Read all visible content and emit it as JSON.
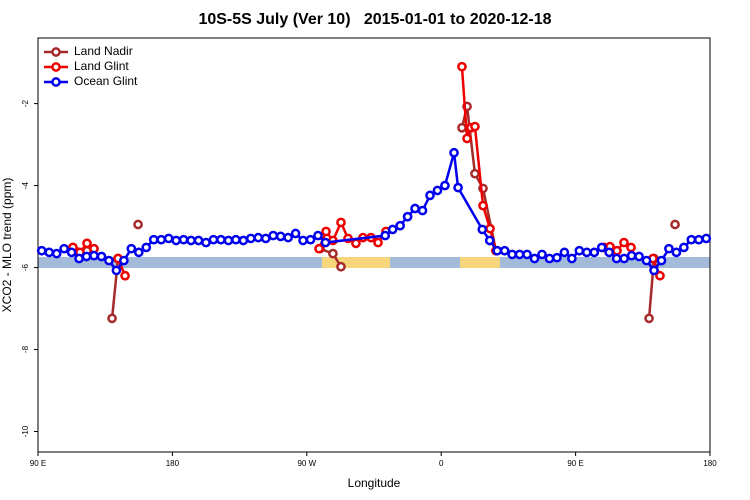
{
  "chart_data": {
    "type": "line",
    "title": "10S-5S July (Ver 10)   2015-01-01 to 2020-12-18",
    "x_label": "Longitude",
    "y_label": "XCO2 - MLO trend (ppm)",
    "xlim": [
      90,
      540
    ],
    "xticks": [
      {
        "value": 90,
        "label": "90 E"
      },
      180,
      {
        "value": 270,
        "label": "90 W"
      },
      {
        "value": 360,
        "label": "0"
      },
      {
        "value": 450,
        "label": "90 E"
      },
      {
        "value": 540,
        "label": "180"
      }
    ],
    "ylim": [
      -10.5,
      -0.4
    ],
    "yticks": [
      -10,
      -8,
      -6,
      -4,
      -2
    ],
    "legend": "top-left",
    "series": [
      {
        "name": "Land Nadir",
        "color": "#a52a2a",
        "x": [
          113.4,
          122.8,
          131.0,
          139.6,
          143.6,
          150.0,
          157.0,
          220.0,
          278.8,
          287.5,
          292.9,
          330.0,
          373.9,
          377.3,
          382.6,
          388.0,
          396.7,
          430.0,
          469.0,
          477.7,
          490.0,
          499.2,
          502.5,
          510.0,
          516.6
        ],
        "values": [
          -5.51,
          -5.59,
          null,
          -7.24,
          -5.78,
          null,
          -4.95,
          null,
          -5.54,
          -5.66,
          -5.98,
          null,
          -2.59,
          -2.07,
          -3.71,
          -4.07,
          -5.59,
          null,
          -5.51,
          -5.59,
          null,
          -7.24,
          -5.78,
          null,
          -4.95
        ]
      },
      {
        "name": "Land Glint",
        "color": "#ee0000",
        "x": [
          113.4,
          118.1,
          122.8,
          127.5,
          135.0,
          143.6,
          148.3,
          220.0,
          278.2,
          282.9,
          287.5,
          292.9,
          297.6,
          302.9,
          307.6,
          313.0,
          317.7,
          323.0,
          350.0,
          373.9,
          377.3,
          379.9,
          382.6,
          388.0,
          392.7,
          396.7,
          430.0,
          469.0,
          473.0,
          477.7,
          482.4,
          487.1,
          495.0,
          501.8,
          506.5
        ],
        "values": [
          -5.51,
          -5.63,
          -5.41,
          -5.54,
          null,
          -5.78,
          -6.2,
          null,
          -5.54,
          -5.12,
          -5.34,
          -4.9,
          -5.29,
          -5.41,
          -5.27,
          -5.27,
          -5.39,
          -5.12,
          null,
          -1.1,
          -2.85,
          -2.59,
          -2.56,
          -4.49,
          -5.05,
          -5.59,
          null,
          -5.51,
          -5.49,
          -5.59,
          -5.39,
          -5.51,
          null,
          -5.78,
          -6.2
        ]
      },
      {
        "name": "Ocean Glint",
        "color": "#0000ee",
        "x": [
          92.5,
          97.5,
          102.5,
          107.5,
          112.5,
          117.5,
          122.5,
          127.5,
          132.5,
          137.5,
          142.5,
          147.5,
          152.5,
          157.5,
          162.5,
          167.5,
          172.5,
          177.5,
          182.5,
          187.5,
          192.5,
          197.5,
          202.5,
          207.5,
          212.5,
          217.5,
          222.5,
          227.5,
          232.5,
          237.5,
          242.5,
          247.5,
          252.5,
          257.5,
          262.5,
          267.5,
          272.5,
          277.5,
          282.5,
          322.5,
          327.5,
          332.5,
          337.5,
          342.5,
          347.5,
          352.5,
          357.5,
          362.5,
          368.6,
          371.3,
          387.5,
          392.5,
          397.5,
          402.5,
          407.5,
          412.5,
          417.5,
          422.5,
          427.5,
          432.5,
          437.5,
          442.5,
          447.5,
          452.5,
          457.5,
          462.5,
          467.5,
          472.5,
          477.5,
          482.5,
          487.5,
          492.5,
          497.5,
          502.5,
          507.5,
          512.5,
          517.5,
          522.5,
          527.5,
          532.5,
          537.5
        ],
        "values": [
          -5.59,
          -5.63,
          -5.66,
          -5.54,
          -5.63,
          -5.78,
          -5.73,
          -5.71,
          -5.73,
          -5.83,
          -6.07,
          -5.83,
          -5.54,
          -5.63,
          -5.51,
          -5.32,
          -5.32,
          -5.29,
          -5.34,
          -5.32,
          -5.34,
          -5.34,
          -5.39,
          -5.32,
          -5.32,
          -5.34,
          -5.32,
          -5.34,
          -5.29,
          -5.27,
          -5.29,
          -5.22,
          -5.24,
          -5.27,
          -5.17,
          -5.34,
          -5.32,
          -5.22,
          -5.39,
          -5.22,
          -5.07,
          -4.98,
          -4.76,
          -4.56,
          -4.61,
          -4.24,
          -4.12,
          -4.0,
          -3.2,
          -4.05,
          -5.07,
          -5.34,
          -5.59,
          -5.59,
          -5.68,
          -5.68,
          -5.68,
          -5.78,
          -5.68,
          -5.78,
          -5.76,
          -5.63,
          -5.78,
          -5.59,
          -5.63,
          -5.63,
          -5.51,
          -5.63,
          -5.78,
          -5.78,
          -5.71,
          -5.73,
          -5.83,
          -6.07,
          -5.83,
          -5.54,
          -5.63,
          -5.51,
          -5.32,
          -5.32,
          -5.29
        ]
      }
    ]
  }
}
